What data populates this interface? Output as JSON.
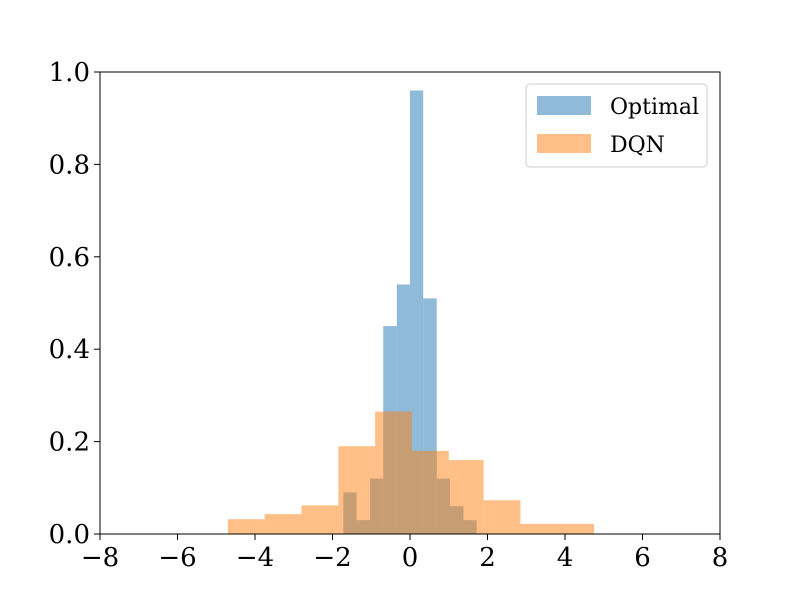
{
  "chart_data": {
    "type": "histogram",
    "xlim": [
      -8,
      8
    ],
    "ylim": [
      0,
      1.0
    ],
    "x_ticks": [
      -8,
      -6,
      -4,
      -2,
      0,
      2,
      4,
      6,
      8
    ],
    "x_tick_labels": [
      "−8",
      "−6",
      "−4",
      "−2",
      "0",
      "2",
      "4",
      "6",
      "8"
    ],
    "y_ticks": [
      0.0,
      0.2,
      0.4,
      0.6,
      0.8,
      1.0
    ],
    "y_tick_labels": [
      "0.0",
      "0.2",
      "0.4",
      "0.6",
      "0.8",
      "1.0"
    ],
    "grid": false,
    "legend_position": "top-right",
    "series": [
      {
        "name": "Optimal",
        "color": "#1f77b4",
        "alpha": 0.5,
        "bins": [
          {
            "x0": -1.72,
            "x1": -1.38,
            "value": 0.09
          },
          {
            "x0": -1.38,
            "x1": -1.03,
            "value": 0.03
          },
          {
            "x0": -1.03,
            "x1": -0.69,
            "value": 0.12
          },
          {
            "x0": -0.69,
            "x1": -0.34,
            "value": 0.45
          },
          {
            "x0": -0.34,
            "x1": 0.0,
            "value": 0.54
          },
          {
            "x0": 0.0,
            "x1": 0.34,
            "value": 0.96
          },
          {
            "x0": 0.34,
            "x1": 0.69,
            "value": 0.51
          },
          {
            "x0": 0.69,
            "x1": 1.03,
            "value": 0.12
          },
          {
            "x0": 1.03,
            "x1": 1.38,
            "value": 0.06
          },
          {
            "x0": 1.38,
            "x1": 1.72,
            "value": 0.03
          }
        ]
      },
      {
        "name": "DQN",
        "color": "#ff7f0e",
        "alpha": 0.5,
        "bins": [
          {
            "x0": -4.7,
            "x1": -3.75,
            "value": 0.032
          },
          {
            "x0": -3.75,
            "x1": -2.8,
            "value": 0.043
          },
          {
            "x0": -2.8,
            "x1": -1.85,
            "value": 0.062
          },
          {
            "x0": -1.85,
            "x1": -0.9,
            "value": 0.19
          },
          {
            "x0": -0.9,
            "x1": 0.05,
            "value": 0.265
          },
          {
            "x0": 0.05,
            "x1": 1.0,
            "value": 0.18
          },
          {
            "x0": 1.0,
            "x1": 1.9,
            "value": 0.16
          },
          {
            "x0": 1.9,
            "x1": 2.85,
            "value": 0.073
          },
          {
            "x0": 2.85,
            "x1": 4.75,
            "value": 0.022
          }
        ]
      }
    ]
  }
}
